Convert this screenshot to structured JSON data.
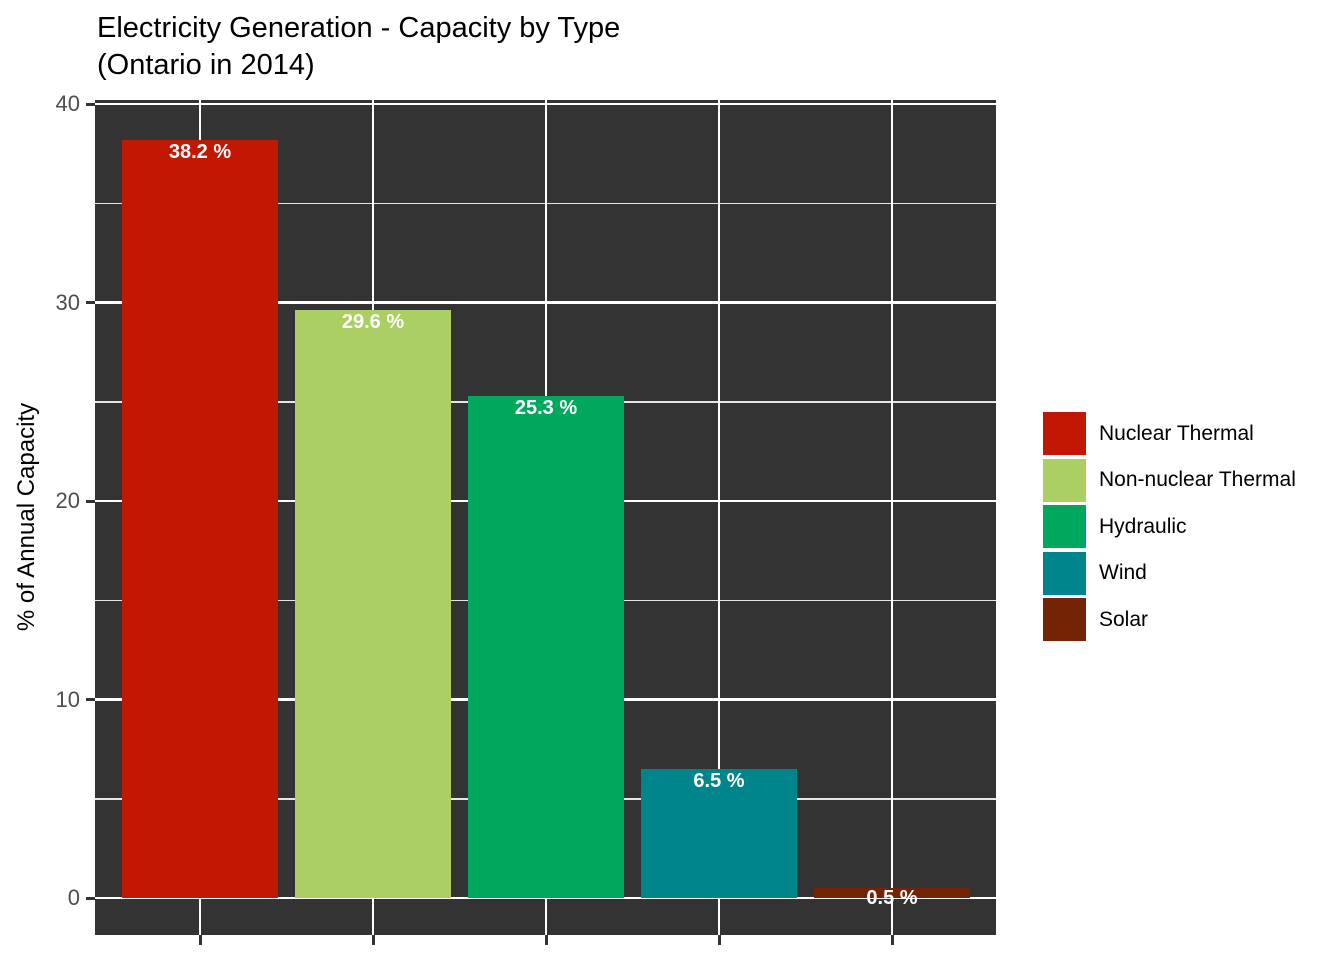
{
  "title": {
    "line1": "Electricity Generation - Capacity by Type",
    "line2": "(Ontario in 2014)"
  },
  "chart_data": {
    "type": "bar",
    "title": "Electricity Generation - Capacity by Type (Ontario in 2014)",
    "categories": [
      "Nuclear Thermal",
      "Non-nuclear Thermal",
      "Hydraulic",
      "Wind",
      "Solar"
    ],
    "values": [
      38.2,
      29.6,
      25.3,
      6.5,
      0.5
    ],
    "bar_labels": [
      "38.2 %",
      "29.6 %",
      "25.3 %",
      "6.5 %",
      "0.5 %"
    ],
    "colors": [
      "#C21803",
      "#ABCF63",
      "#00A85D",
      "#00858C",
      "#732405"
    ],
    "xlabel": "",
    "ylabel": "% of Annual Capacity",
    "ylim": [
      0,
      40
    ],
    "y_major_ticks": [
      0,
      10,
      20,
      30,
      40
    ],
    "y_minor_ticks": [
      5,
      15,
      25,
      35
    ],
    "x_tick_labels_visible": false,
    "grid": "white gridlines on dark panel",
    "legend_position": "right",
    "panel_background": "#333333",
    "gridline_color": "#FFFFFF",
    "tick_label_color": "#4D4D4D",
    "bar_label_color": "#FFFFFF"
  },
  "legend": {
    "items": [
      {
        "label": "Nuclear Thermal",
        "color": "#C21803"
      },
      {
        "label": "Non-nuclear Thermal",
        "color": "#ABCF63"
      },
      {
        "label": "Hydraulic",
        "color": "#00A85D"
      },
      {
        "label": "Wind",
        "color": "#00858C"
      },
      {
        "label": "Solar",
        "color": "#732405"
      }
    ]
  }
}
